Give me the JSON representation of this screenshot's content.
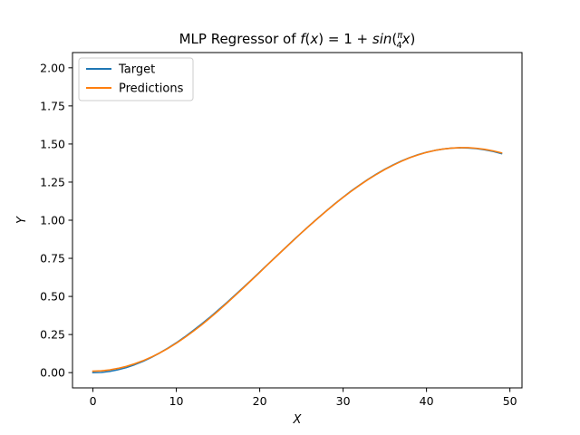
{
  "chart_data": {
    "type": "line",
    "title": {
      "prefix": "MLP Regressor of ",
      "fx": "f",
      "x_in_parens": "x",
      "equals_one_plus": "= 1 + ",
      "sin": "sin",
      "frac_num": "π",
      "frac_den": "4",
      "suffix_x": "x",
      "close": ")"
    },
    "xlabel": "X",
    "ylabel": "Y",
    "xlim": [
      -2.45,
      51.45
    ],
    "ylim": [
      -0.1,
      2.1
    ],
    "xticks": [
      0,
      10,
      20,
      30,
      40,
      50
    ],
    "yticks": [
      "0.00",
      "0.25",
      "0.50",
      "0.75",
      "1.00",
      "1.25",
      "1.50",
      "1.75",
      "2.00"
    ],
    "legend_position": "upper-left",
    "x": [
      0,
      1,
      2,
      3,
      4,
      5,
      6,
      7,
      8,
      9,
      10,
      11,
      12,
      13,
      14,
      15,
      16,
      17,
      18,
      19,
      20,
      21,
      22,
      23,
      24,
      25,
      26,
      27,
      28,
      29,
      30,
      31,
      32,
      33,
      34,
      35,
      36,
      37,
      38,
      39,
      40,
      41,
      42,
      43,
      44,
      45,
      46,
      47,
      48,
      49
    ],
    "series": [
      {
        "name": "Target",
        "color": "#1f77b4",
        "values": [
          0.0,
          0.001,
          0.008,
          0.019,
          0.033,
          0.052,
          0.074,
          0.1,
          0.129,
          0.161,
          0.196,
          0.234,
          0.275,
          0.318,
          0.362,
          0.409,
          0.457,
          0.507,
          0.557,
          0.608,
          0.66,
          0.712,
          0.764,
          0.815,
          0.867,
          0.917,
          0.967,
          1.015,
          1.062,
          1.108,
          1.151,
          1.193,
          1.232,
          1.269,
          1.303,
          1.335,
          1.363,
          1.389,
          1.411,
          1.43,
          1.446,
          1.458,
          1.467,
          1.473,
          1.475,
          1.474,
          1.47,
          1.462,
          1.451,
          1.437
        ]
      },
      {
        "name": "Predictions",
        "color": "#ff7f0e",
        "values": [
          0.01,
          0.012,
          0.018,
          0.028,
          0.041,
          0.058,
          0.078,
          0.102,
          0.129,
          0.159,
          0.193,
          0.23,
          0.27,
          0.312,
          0.357,
          0.404,
          0.453,
          0.503,
          0.554,
          0.606,
          0.658,
          0.711,
          0.763,
          0.815,
          0.866,
          0.917,
          0.966,
          1.014,
          1.061,
          1.106,
          1.15,
          1.191,
          1.23,
          1.267,
          1.301,
          1.333,
          1.361,
          1.387,
          1.41,
          1.429,
          1.445,
          1.458,
          1.467,
          1.473,
          1.476,
          1.476,
          1.472,
          1.465,
          1.455,
          1.442
        ]
      }
    ]
  }
}
